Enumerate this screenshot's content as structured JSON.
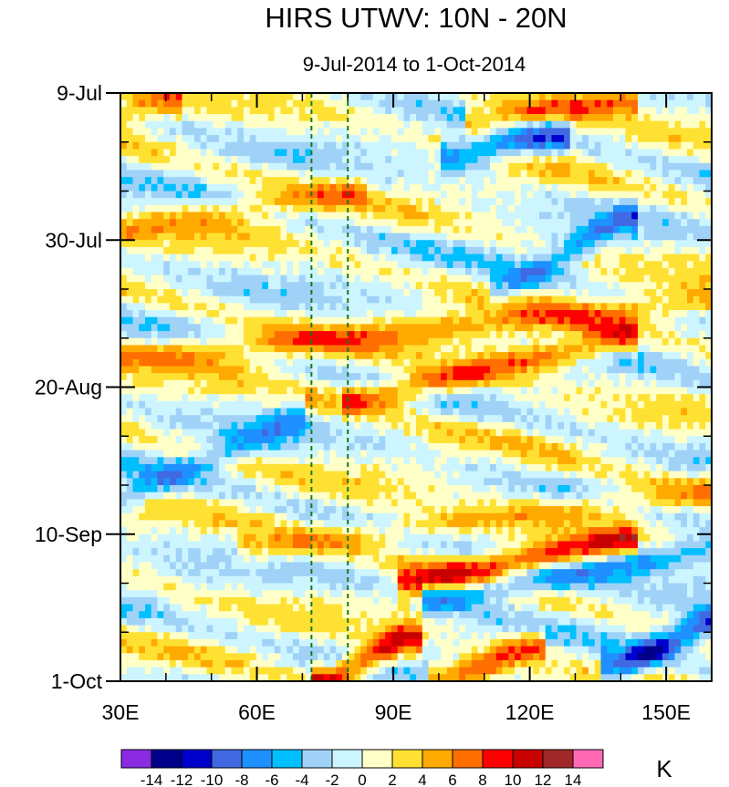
{
  "chart_data": {
    "type": "heatmap",
    "title": "HIRS UTWV: 10N - 20N",
    "subtitle": "9-Jul-2014 to 1-Oct-2014",
    "x_axis": {
      "range": [
        30,
        160
      ],
      "ticks": [
        30,
        60,
        90,
        120,
        150
      ],
      "tick_labels": [
        "30E",
        "60E",
        "90E",
        "120E",
        "150E"
      ]
    },
    "y_axis": {
      "range_days": [
        0,
        84
      ],
      "ticks": [
        0,
        21,
        42,
        63,
        84
      ],
      "tick_labels": [
        "9-Jul",
        "30-Jul",
        "20-Aug",
        "10-Sep",
        "1-Oct"
      ],
      "direction": "time increases downward"
    },
    "reference_lines_x": [
      72,
      80
    ],
    "colorbar": {
      "unit": "K",
      "levels": [
        -14,
        -12,
        -10,
        -8,
        -6,
        -4,
        -2,
        0,
        2,
        4,
        6,
        8,
        10,
        12,
        14
      ],
      "level_labels": [
        "-14",
        "-12",
        "-10",
        "-8",
        "-6",
        "-4",
        "-2",
        "0",
        "2",
        "4",
        "6",
        "8",
        "10",
        "12",
        "14"
      ],
      "colors": [
        "#8a2be2",
        "#00008b",
        "#0000cd",
        "#4169e1",
        "#1e90ff",
        "#00bfff",
        "#a0d2f8",
        "#ccf5ff",
        "#ffffc8",
        "#ffe133",
        "#ffaa00",
        "#ff6e00",
        "#ff0000",
        "#c80000",
        "#a02828",
        "#ff69b4"
      ]
    },
    "features": [
      {
        "name": "positive band",
        "x": [
          75,
          140
        ],
        "day": [
          45,
          35
        ],
        "value": 8
      },
      {
        "name": "positive band",
        "x": [
          95,
          140
        ],
        "day": [
          70,
          64
        ],
        "value": 9
      },
      {
        "name": "negative band",
        "x": [
          100,
          160
        ],
        "day": [
          72,
          65
        ],
        "value": -8
      },
      {
        "name": "positive band",
        "x": [
          30,
          160
        ],
        "day": [
          38,
          30
        ],
        "value": 5
      },
      {
        "name": "negative blob",
        "x": [
          115,
          140
        ],
        "day": [
          28,
          18
        ],
        "value": -6
      },
      {
        "name": "negative band",
        "x": [
          30,
          75
        ],
        "day": [
          58,
          45
        ],
        "value": -5
      },
      {
        "name": "positive blob",
        "x": [
          76,
          92
        ],
        "day": [
          84,
          78
        ],
        "value": 10
      },
      {
        "name": "positive blob",
        "x": [
          102,
          120
        ],
        "day": [
          84,
          79
        ],
        "value": 8
      },
      {
        "name": "negative blob",
        "x": [
          140,
          158
        ],
        "day": [
          82,
          76
        ],
        "value": -10
      },
      {
        "name": "positive band",
        "x": [
          30,
          80
        ],
        "day": [
          20,
          14
        ],
        "value": 4
      },
      {
        "name": "positive blob",
        "x": [
          110,
          140
        ],
        "day": [
          4,
          1
        ],
        "value": 8
      },
      {
        "name": "negative blob",
        "x": [
          105,
          125
        ],
        "day": [
          9,
          6
        ],
        "value": -8
      },
      {
        "name": "positive band",
        "x": [
          60,
          160
        ],
        "day": [
          65,
          57
        ],
        "value": 5
      },
      {
        "name": "positive blob",
        "x": [
          30,
          40
        ],
        "day": [
          3,
          1
        ],
        "value": 5
      }
    ]
  }
}
